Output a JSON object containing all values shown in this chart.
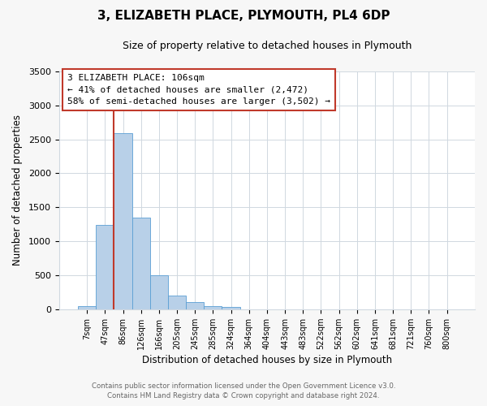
{
  "title": "3, ELIZABETH PLACE, PLYMOUTH, PL4 6DP",
  "subtitle": "Size of property relative to detached houses in Plymouth",
  "xlabel": "Distribution of detached houses by size in Plymouth",
  "ylabel": "Number of detached properties",
  "bar_labels": [
    "7sqm",
    "47sqm",
    "86sqm",
    "126sqm",
    "166sqm",
    "205sqm",
    "245sqm",
    "285sqm",
    "324sqm",
    "364sqm",
    "404sqm",
    "443sqm",
    "483sqm",
    "522sqm",
    "562sqm",
    "602sqm",
    "641sqm",
    "681sqm",
    "721sqm",
    "760sqm",
    "800sqm"
  ],
  "bar_values": [
    50,
    1240,
    2590,
    1350,
    500,
    200,
    110,
    50,
    30,
    0,
    0,
    0,
    0,
    0,
    0,
    0,
    0,
    0,
    0,
    0,
    0
  ],
  "bar_color": "#b8d0e8",
  "bar_edge_color": "#5a9fd4",
  "bar_width": 1.0,
  "ylim": [
    0,
    3500
  ],
  "yticks": [
    0,
    500,
    1000,
    1500,
    2000,
    2500,
    3000,
    3500
  ],
  "property_line_index": 2,
  "property_line_color": "#c0392b",
  "annotation_title": "3 ELIZABETH PLACE: 106sqm",
  "annotation_line1": "← 41% of detached houses are smaller (2,472)",
  "annotation_line2": "58% of semi-detached houses are larger (3,502) →",
  "annotation_box_color": "#ffffff",
  "annotation_box_edge": "#c0392b",
  "footer1": "Contains HM Land Registry data © Crown copyright and database right 2024.",
  "footer2": "Contains public sector information licensed under the Open Government Licence v3.0.",
  "background_color": "#f7f7f7",
  "plot_bg_color": "#ffffff",
  "grid_color": "#d0d8e0"
}
